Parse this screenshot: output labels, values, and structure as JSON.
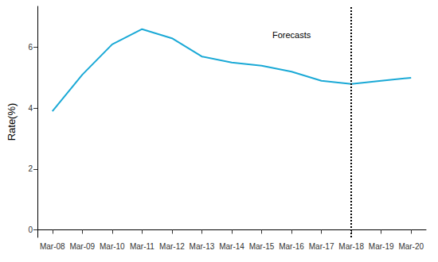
{
  "chart_data": {
    "type": "line",
    "categories": [
      "Mar-08",
      "Mar-09",
      "Mar-10",
      "Mar-11",
      "Mar-12",
      "Mar-13",
      "Mar-14",
      "Mar-15",
      "Mar-16",
      "Mar-17",
      "Mar-18",
      "Mar-19",
      "Mar-20"
    ],
    "values": [
      3.9,
      5.1,
      6.1,
      6.6,
      6.3,
      5.7,
      5.5,
      5.4,
      5.2,
      4.9,
      4.8,
      4.9,
      5.0
    ],
    "color": "#1aa9d6",
    "y_label": "Rate(%)",
    "ylim": [
      -0.25,
      7.35
    ],
    "yticks": [
      0,
      2,
      4,
      6
    ],
    "grid": false,
    "annotations": [
      {
        "text": "Forecasts",
        "x": "Mar-16",
        "y": 6.4
      }
    ],
    "vertical_line": {
      "x": "Mar-18",
      "line_style": "dotted",
      "color": "#000000"
    }
  }
}
